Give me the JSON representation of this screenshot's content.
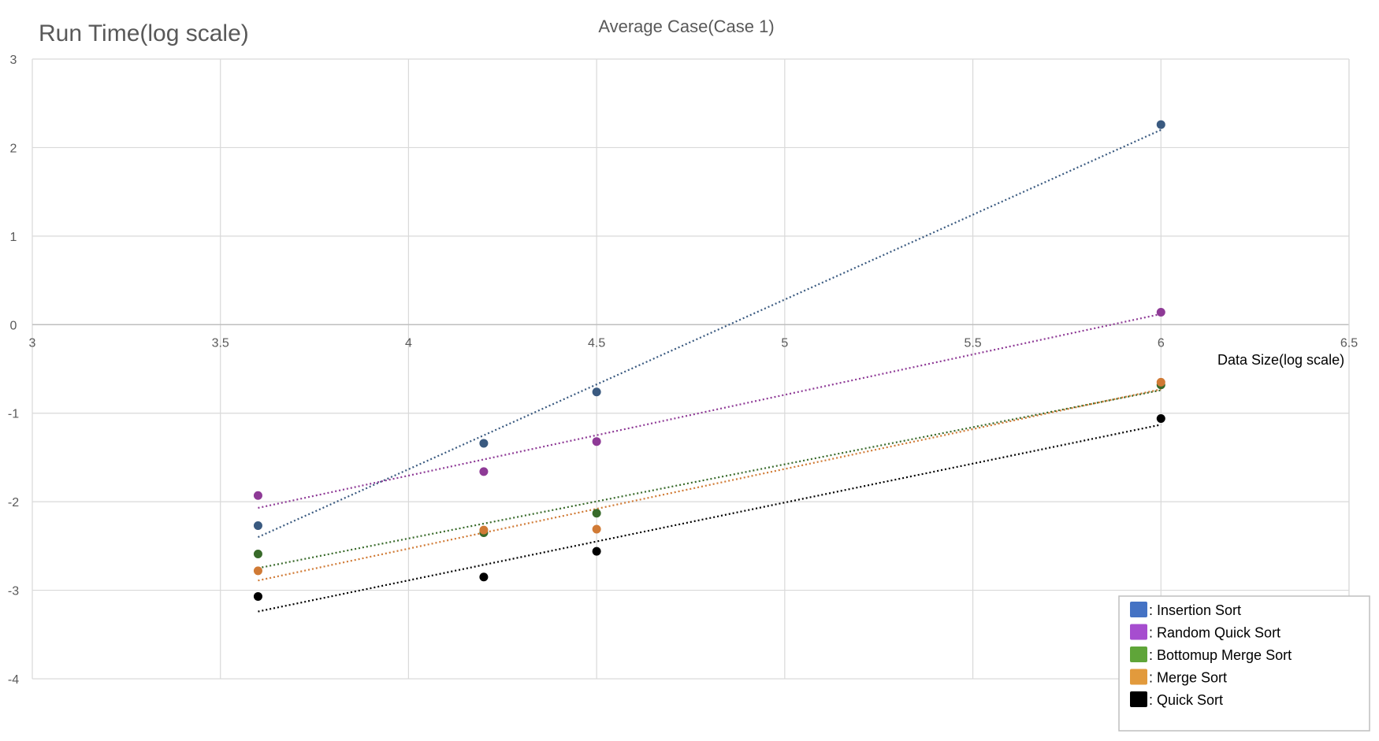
{
  "chart_data": {
    "type": "scatter",
    "title": "Average Case(Case 1)",
    "ylabel": "Run Time(log scale)",
    "xlabel": "Data Size(log scale)",
    "xlim": [
      3,
      6.5
    ],
    "ylim": [
      -4,
      3
    ],
    "xticks": [
      "3",
      "3.5",
      "4",
      "4.5",
      "5",
      "5.5",
      "6",
      "6.5"
    ],
    "yticks": [
      "3",
      "2",
      "1",
      "0",
      "-1",
      "-2",
      "-3",
      "-4"
    ],
    "grid": true,
    "legend_position": "bottom-right",
    "series": [
      {
        "name": ": Insertion Sort",
        "color": "#3a5a80",
        "legend_color": "#4472c4",
        "x": [
          3.6,
          4.2,
          4.5,
          6.0
        ],
        "y": [
          -2.27,
          -1.34,
          -0.76,
          2.26
        ],
        "trend": [
          [
            3.6,
            -2.4
          ],
          [
            6.0,
            2.2
          ]
        ]
      },
      {
        "name": ": Random Quick Sort",
        "color": "#8e3a96",
        "legend_color": "#a64dcf",
        "x": [
          3.6,
          4.2,
          4.5,
          6.0
        ],
        "y": [
          -1.93,
          -1.66,
          -1.32,
          0.14
        ],
        "trend": [
          [
            3.6,
            -2.07
          ],
          [
            6.0,
            0.12
          ]
        ]
      },
      {
        "name": ": Bottomup Merge Sort",
        "color": "#386a2a",
        "legend_color": "#5fa539",
        "x": [
          3.6,
          4.2,
          4.5,
          6.0
        ],
        "y": [
          -2.59,
          -2.35,
          -2.13,
          -0.68
        ],
        "trend": [
          [
            3.6,
            -2.75
          ],
          [
            6.0,
            -0.74
          ]
        ]
      },
      {
        "name": ": Merge Sort",
        "color": "#d07a35",
        "legend_color": "#e29a3c",
        "x": [
          3.6,
          4.2,
          4.5,
          6.0
        ],
        "y": [
          -2.78,
          -2.32,
          -2.31,
          -0.65
        ],
        "trend": [
          [
            3.6,
            -2.89
          ],
          [
            6.0,
            -0.73
          ]
        ]
      },
      {
        "name": ": Quick Sort",
        "color": "#000000",
        "legend_color": "#000000",
        "x": [
          3.6,
          4.2,
          4.5,
          6.0
        ],
        "y": [
          -3.07,
          -2.85,
          -2.56,
          -1.06
        ],
        "trend": [
          [
            3.6,
            -3.24
          ],
          [
            6.0,
            -1.13
          ]
        ]
      }
    ]
  }
}
